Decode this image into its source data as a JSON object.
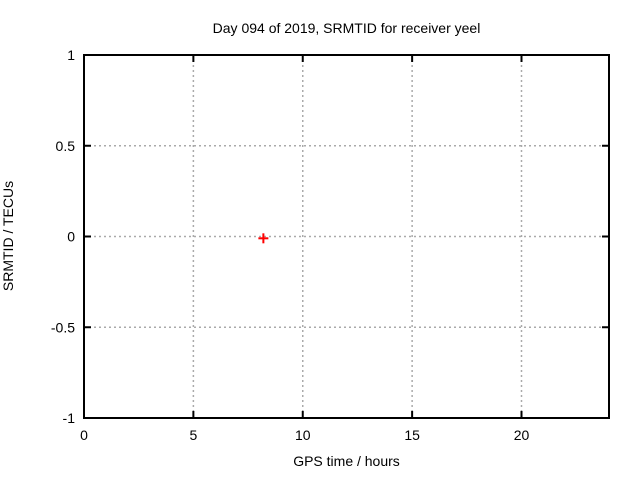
{
  "page": {
    "background": "#ffffff"
  },
  "chart_data": {
    "type": "scatter",
    "title": "Day 094 of 2019, SRMTID for receiver yeel",
    "xlabel": "GPS time / hours",
    "ylabel": "SRMTID / TECUs",
    "xlim": [
      0,
      24
    ],
    "ylim": [
      -1,
      1
    ],
    "xticks": [
      0,
      5,
      10,
      15,
      20
    ],
    "xtick_labels": [
      "0",
      "5",
      "10",
      "15",
      "20"
    ],
    "yticks": [
      -1,
      -0.5,
      0,
      0.5,
      1
    ],
    "ytick_labels": [
      "-1",
      "-0.5",
      "0",
      "0.5",
      "1"
    ],
    "grid": true,
    "grid_color": "#aaaaaa",
    "grid_style": "dashed",
    "axis_color": "#000000",
    "legend": "none",
    "series": [
      {
        "name": "SRMTID",
        "marker": "plus",
        "color": "#ff0000",
        "points": [
          {
            "x": 8.2,
            "y": -0.01
          }
        ]
      }
    ]
  }
}
